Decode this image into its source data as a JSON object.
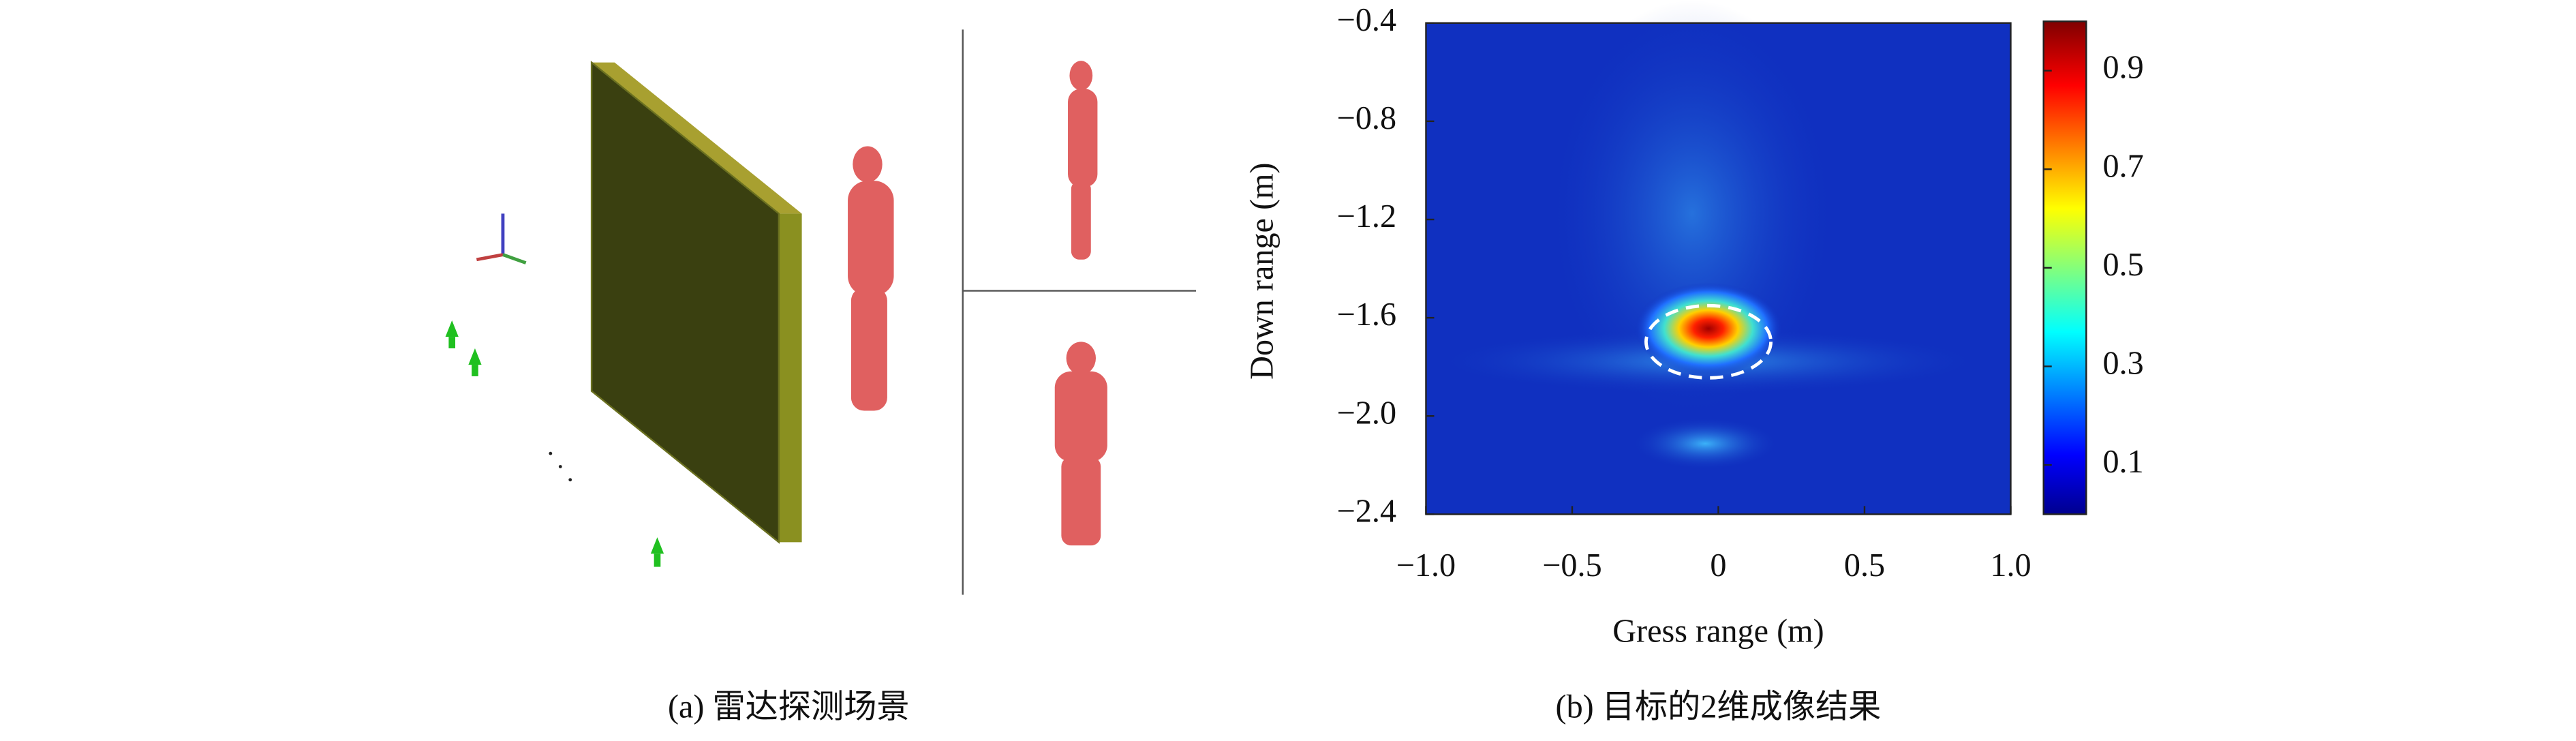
{
  "panel_a": {
    "caption": "(a) 雷达探测场景"
  },
  "chart_data": {
    "type": "heatmap",
    "xlabel": "Gress range (m)",
    "ylabel": "Down range (m)",
    "xlim": [
      -1,
      1
    ],
    "ylim": [
      -2.4,
      -0.4
    ],
    "xticks": [
      {
        "value": -1,
        "label": "−1.0"
      },
      {
        "value": -0.5,
        "label": "−0.5"
      },
      0,
      0.5,
      {
        "value": 1,
        "label": "1.0"
      }
    ],
    "yticks": [
      {
        "value": -0.4,
        "label": "−0.4"
      },
      {
        "value": -0.8,
        "label": "−0.8"
      },
      {
        "value": -1.2,
        "label": "−1.2"
      },
      {
        "value": -1.6,
        "label": "−1.6"
      },
      {
        "value": -2,
        "label": "−2.0"
      },
      {
        "value": -2.4,
        "label": "−2.4"
      }
    ],
    "colorbar": {
      "lim": [
        0,
        1
      ],
      "ticks": [
        0.1,
        0.3,
        0.5,
        0.7,
        0.9
      ]
    },
    "caption": "(b) 目标的2维成像结果"
  }
}
